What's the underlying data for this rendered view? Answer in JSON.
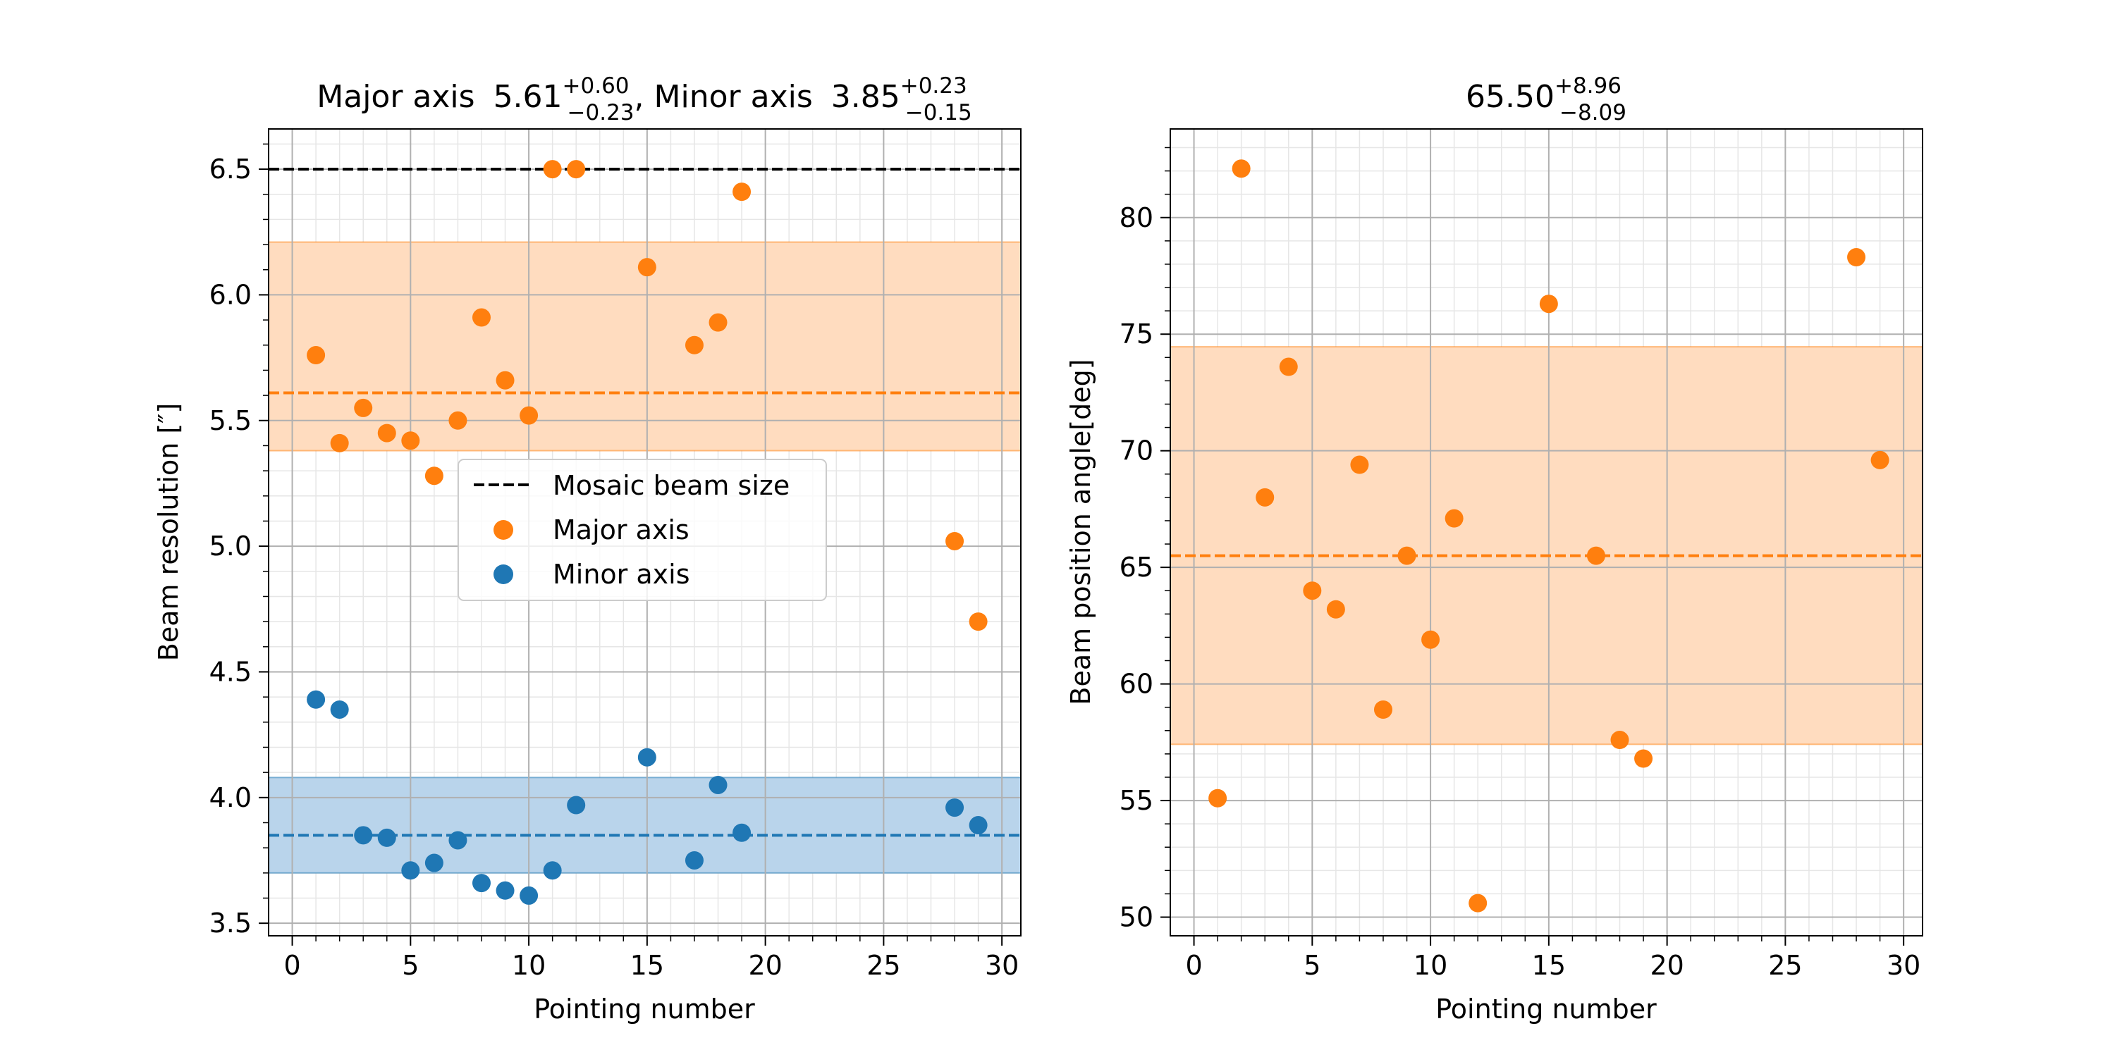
{
  "colors": {
    "major": "#ff7f0e",
    "minor": "#1f77b4",
    "band_major": "#ffdcbf",
    "band_minor": "#b9d4eb",
    "mosaic": "#000000",
    "grid_major": "#b0b0b0",
    "grid_minor": "#e6e6e6"
  },
  "chart_data": [
    {
      "type": "scatter",
      "title": {
        "major_label": "Major axis",
        "major_value": "5.61",
        "major_plus": "+0.60",
        "major_minus": "−0.23",
        "separator": ",",
        "minor_label": "Minor axis",
        "minor_value": "3.85",
        "minor_plus": "+0.23",
        "minor_minus": "−0.15"
      },
      "xlabel": "Pointing number",
      "ylabel": "Beam resolution [″]",
      "xlim": [
        -1,
        30.8
      ],
      "ylim": [
        3.45,
        6.66
      ],
      "xticks": [
        0,
        5,
        10,
        15,
        20,
        25,
        30
      ],
      "xtick_labels": [
        "0",
        "5",
        "10",
        "15",
        "20",
        "25",
        "30"
      ],
      "yticks": [
        3.5,
        4.0,
        4.5,
        5.0,
        5.5,
        6.0,
        6.5
      ],
      "ytick_labels": [
        "3.5",
        "4.0",
        "4.5",
        "5.0",
        "5.5",
        "6.0",
        "6.5"
      ],
      "grid": true,
      "mosaic_beam_size": 6.5,
      "major_axis": {
        "median": 5.61,
        "band": [
          5.38,
          6.21
        ],
        "x": [
          1,
          2,
          3,
          4,
          5,
          6,
          7,
          8,
          9,
          10,
          11,
          12,
          15,
          17,
          18,
          19,
          28,
          29
        ],
        "y": [
          5.76,
          5.41,
          5.55,
          5.45,
          5.42,
          5.28,
          5.5,
          5.91,
          5.66,
          5.52,
          6.5,
          6.5,
          6.11,
          5.8,
          5.89,
          6.41,
          5.02,
          4.7
        ]
      },
      "minor_axis": {
        "median": 3.85,
        "band": [
          3.7,
          4.08
        ],
        "x": [
          1,
          2,
          3,
          4,
          5,
          6,
          7,
          8,
          9,
          10,
          11,
          12,
          15,
          17,
          18,
          19,
          28,
          29
        ],
        "y": [
          4.39,
          4.35,
          3.85,
          3.84,
          3.71,
          3.74,
          3.83,
          3.66,
          3.63,
          3.61,
          3.71,
          3.97,
          4.16,
          3.75,
          4.05,
          3.86,
          3.96,
          3.89
        ]
      },
      "legend": {
        "position": "center",
        "entries": [
          "Mosaic beam size",
          "Major axis",
          "Minor axis"
        ]
      }
    },
    {
      "type": "scatter",
      "title": {
        "value": "65.50",
        "plus": "+8.96",
        "minus": "−8.09"
      },
      "xlabel": "Pointing number",
      "ylabel": "Beam position angle[deg]",
      "xlim": [
        -1,
        30.8
      ],
      "ylim": [
        49.2,
        83.8
      ],
      "xticks": [
        0,
        5,
        10,
        15,
        20,
        25,
        30
      ],
      "xtick_labels": [
        "0",
        "5",
        "10",
        "15",
        "20",
        "25",
        "30"
      ],
      "yticks": [
        50,
        55,
        60,
        65,
        70,
        75,
        80
      ],
      "ytick_labels": [
        "50",
        "55",
        "60",
        "65",
        "70",
        "75",
        "80"
      ],
      "grid": true,
      "angle": {
        "median": 65.5,
        "band": [
          57.41,
          74.46
        ],
        "x": [
          1,
          2,
          3,
          4,
          5,
          6,
          7,
          8,
          9,
          10,
          11,
          12,
          15,
          17,
          18,
          19,
          28,
          29
        ],
        "y": [
          55.1,
          82.1,
          68.0,
          73.6,
          64.0,
          63.2,
          69.4,
          58.9,
          65.5,
          61.9,
          67.1,
          50.6,
          76.3,
          65.5,
          57.6,
          56.8,
          78.3,
          69.6
        ]
      }
    }
  ]
}
